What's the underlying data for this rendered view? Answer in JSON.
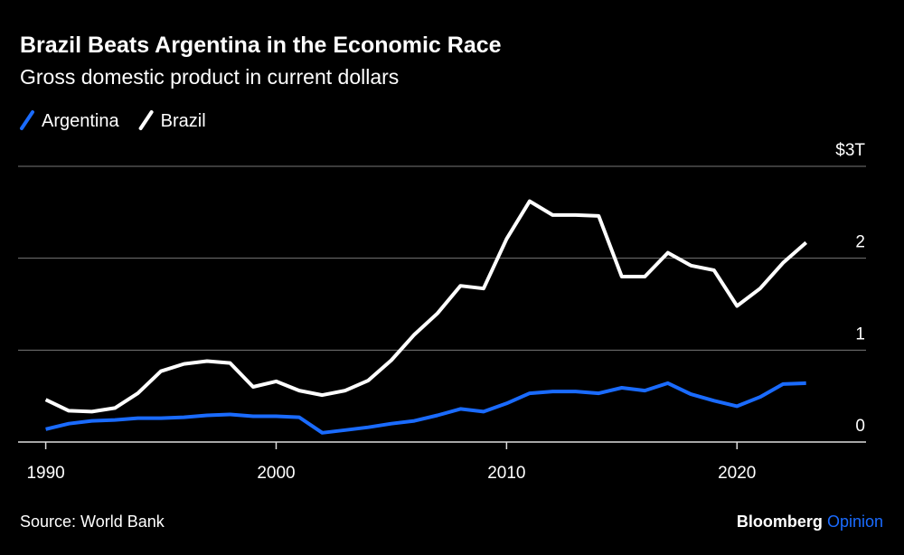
{
  "chart_data": {
    "type": "line",
    "title": "Brazil Beats Argentina in the Economic Race",
    "subtitle": "Gross domestic product in current dollars",
    "x": [
      1990,
      1991,
      1992,
      1993,
      1994,
      1995,
      1996,
      1997,
      1998,
      1999,
      2000,
      2001,
      2002,
      2003,
      2004,
      2005,
      2006,
      2007,
      2008,
      2009,
      2010,
      2011,
      2012,
      2013,
      2014,
      2015,
      2016,
      2017,
      2018,
      2019,
      2020,
      2021,
      2022,
      2023
    ],
    "series": [
      {
        "name": "Argentina",
        "color": "#1a6bff",
        "values": [
          0.14,
          0.2,
          0.23,
          0.24,
          0.26,
          0.26,
          0.27,
          0.29,
          0.3,
          0.28,
          0.28,
          0.27,
          0.1,
          0.13,
          0.16,
          0.2,
          0.23,
          0.29,
          0.36,
          0.33,
          0.42,
          0.53,
          0.55,
          0.55,
          0.53,
          0.59,
          0.56,
          0.64,
          0.52,
          0.45,
          0.39,
          0.49,
          0.63,
          0.64
        ]
      },
      {
        "name": "Brazil",
        "color": "#ffffff",
        "values": [
          0.46,
          0.34,
          0.33,
          0.37,
          0.53,
          0.77,
          0.85,
          0.88,
          0.86,
          0.6,
          0.66,
          0.56,
          0.51,
          0.56,
          0.67,
          0.89,
          1.17,
          1.4,
          1.7,
          1.67,
          2.21,
          2.62,
          2.47,
          2.47,
          2.46,
          1.8,
          1.8,
          2.06,
          1.92,
          1.87,
          1.48,
          1.67,
          1.95,
          2.17
        ]
      }
    ],
    "xlim": [
      1988.8,
      2025.6
    ],
    "xticks": [
      1990,
      2000,
      2010,
      2020
    ],
    "ylim": [
      0,
      3
    ],
    "yticks": [
      0,
      1,
      2,
      {
        "value": 3,
        "label": "$3T"
      }
    ],
    "grid": true,
    "source": "Source: World Bank",
    "branding": {
      "name": "Bloomberg",
      "section": "Opinion"
    }
  }
}
